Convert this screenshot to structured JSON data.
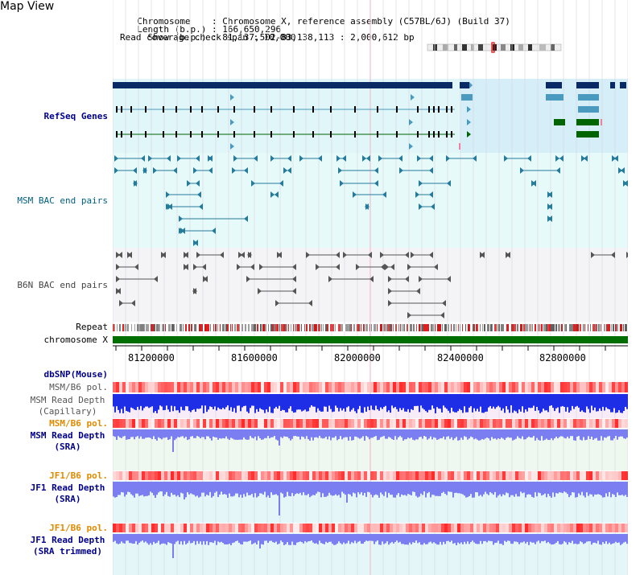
{
  "page": {
    "title": "Map View"
  },
  "info": {
    "chromosome_label": "Chromosome    : ",
    "chromosome_value": "Chromosome X, reference assembly (C57BL/6J) (Build 37)",
    "length_label": "Length (b.p.) : ",
    "length_value": "166,650,296",
    "show_label": "  Show (b.p.) : ",
    "show_value": "81,137,502-83,138,113 : 2,000,612 bp",
    "coverage": "Read coverage check span : 10,000"
  },
  "tracks": {
    "refseq": "RefSeq Genes",
    "msm_bac": "MSM BAC end pairs",
    "b6n_bac": "B6N BAC end pairs",
    "repeat": "Repeat",
    "chromosome": "chromosome X",
    "dbsnp": "dbSNP(Mouse)",
    "msm_b6_pol_1": "MSM/B6 pol.",
    "msm_depth_cap": "MSM Read Depth\n(Capillary)",
    "msm_b6_pol_2": "MSM/B6 pol.",
    "msm_depth_sra": "MSM Read Depth\n(SRA)",
    "jf1_b6_pol_1": "JF1/B6 pol.",
    "jf1_depth_sra": "JF1 Read Depth\n(SRA)",
    "jf1_b6_pol_2": "JF1/B6 pol.",
    "jf1_depth_trim": "JF1 Read Depth\n(SRA trimmed)"
  },
  "axis": {
    "ticks": [
      "81200000",
      "81600000",
      "82000000",
      "82400000",
      "82800000"
    ]
  },
  "colors": {
    "refseq_dark": "#0a2a66",
    "refseq_light": "#4a9ac0",
    "refseq_green": "#006400",
    "bac_teal": "#267a9a",
    "bac_gray": "#555555",
    "chromosome_green": "#006e00",
    "depth_blue": "#1e2ee6",
    "depth_light": "#7a7ef0"
  }
}
